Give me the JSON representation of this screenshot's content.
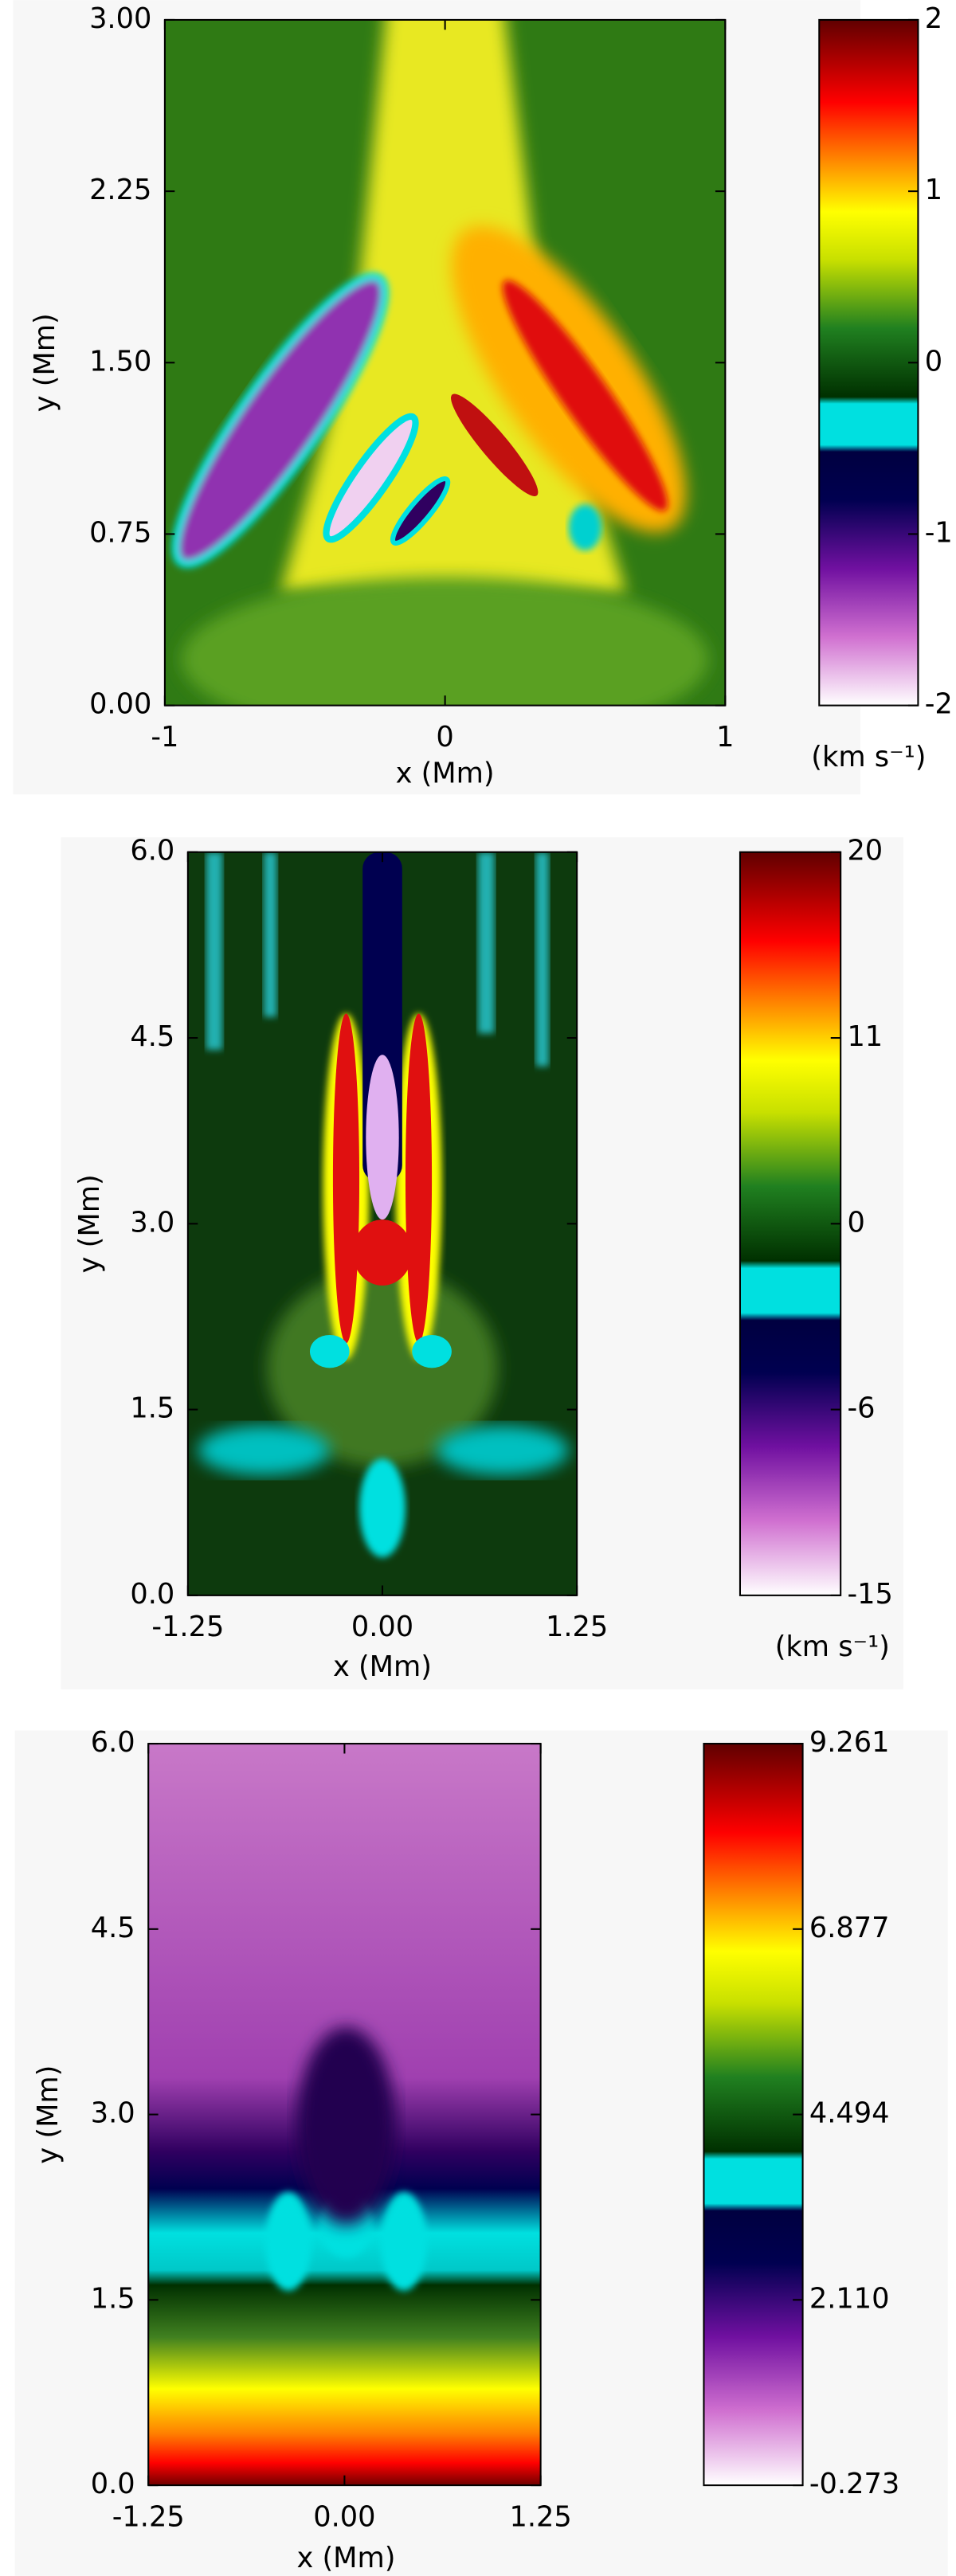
{
  "chart_data": [
    {
      "type": "heatmap",
      "xlabel": "x (Mm)",
      "ylabel": "y (Mm)",
      "xlim": [
        -1,
        1
      ],
      "xticks": [
        -1,
        0,
        1
      ],
      "ylim": [
        0,
        3
      ],
      "yticks": [
        {
          "value": 0,
          "label": "0.00"
        },
        {
          "value": 0.75,
          "label": "0.75"
        },
        {
          "value": 1.5,
          "label": "1.50"
        },
        {
          "value": 2.25,
          "label": "2.25"
        },
        {
          "value": 3,
          "label": "3.00"
        }
      ],
      "colorbar": {
        "ticks": [
          -2,
          -1,
          0,
          1,
          2
        ],
        "label": "(km s⁻¹)"
      }
    },
    {
      "type": "heatmap",
      "xlabel": "x (Mm)",
      "ylabel": "y (Mm)",
      "xlim": [
        -1.25,
        1.25
      ],
      "xticks": [
        -1.25,
        {
          "value": 0,
          "label": "0.00"
        },
        1.25
      ],
      "ylim": [
        0,
        6
      ],
      "yticks": [
        {
          "value": 0,
          "label": "0.0"
        },
        1.5,
        {
          "value": 3,
          "label": "3.0"
        },
        4.5,
        {
          "value": 6,
          "label": "6.0"
        }
      ],
      "colorbar": {
        "ticks": [
          -15,
          -6,
          0,
          11,
          20
        ],
        "label": "(km s⁻¹)"
      }
    },
    {
      "type": "heatmap",
      "xlabel": "x (Mm)",
      "ylabel": "y (Mm)",
      "xlim": [
        -1.25,
        1.25
      ],
      "xticks": [
        -1.25,
        {
          "value": 0,
          "label": "0.00"
        },
        1.25
      ],
      "ylim": [
        0,
        6
      ],
      "yticks": [
        {
          "value": 0,
          "label": "0.0"
        },
        1.5,
        {
          "value": 3,
          "label": "3.0"
        },
        4.5,
        {
          "value": 6,
          "label": "6.0"
        }
      ],
      "colorbar": {
        "ticks": [
          -0.273,
          {
            "value": 2.11,
            "label": "2.110"
          },
          4.494,
          6.877,
          9.261
        ]
      }
    }
  ]
}
